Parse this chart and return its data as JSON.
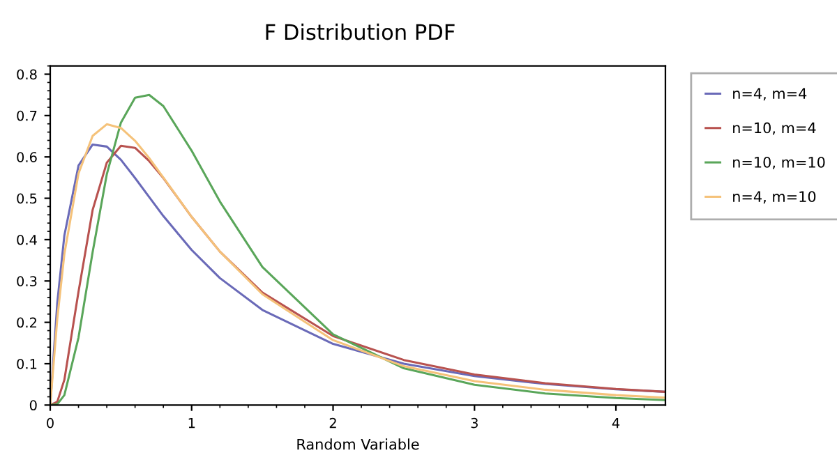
{
  "chart_data": {
    "type": "line",
    "title": "F Distribution PDF",
    "xlabel": "Random Variable",
    "x": [
      0,
      0.05,
      0.1,
      0.2,
      0.3,
      0.4,
      0.5,
      0.6,
      0.7,
      0.8,
      1.0,
      1.2,
      1.5,
      2,
      2.5,
      3,
      3.5,
      4,
      4.35
    ],
    "series": [
      {
        "name": "n=4, m=4",
        "color": "#6a6ab8",
        "values": [
          0,
          0.247,
          0.41,
          0.579,
          0.63,
          0.625,
          0.593,
          0.549,
          0.503,
          0.457,
          0.375,
          0.307,
          0.23,
          0.148,
          0.1,
          0.07,
          0.051,
          0.038,
          0.032
        ]
      },
      {
        "name": "n=10, m=4",
        "color": "#b8524f",
        "values": [
          0,
          0.008,
          0.061,
          0.274,
          0.472,
          0.586,
          0.627,
          0.622,
          0.59,
          0.549,
          0.455,
          0.371,
          0.272,
          0.167,
          0.109,
          0.074,
          0.053,
          0.039,
          0.032
        ]
      },
      {
        "name": "n=10, m=10",
        "color": "#5aa65a",
        "values": [
          0,
          0.002,
          0.024,
          0.163,
          0.37,
          0.558,
          0.683,
          0.743,
          0.75,
          0.723,
          0.615,
          0.492,
          0.334,
          0.171,
          0.089,
          0.049,
          0.028,
          0.017,
          0.012
        ]
      },
      {
        "name": "n=4, m=10",
        "color": "#f5c27a",
        "values": [
          0,
          0.209,
          0.365,
          0.56,
          0.651,
          0.679,
          0.67,
          0.639,
          0.597,
          0.55,
          0.455,
          0.371,
          0.268,
          0.157,
          0.094,
          0.058,
          0.037,
          0.024,
          0.018
        ]
      }
    ],
    "xlim": [
      0,
      4.35
    ],
    "xticks": [
      0,
      1,
      2,
      3,
      4
    ],
    "ylim": [
      0,
      0.82
    ],
    "yticks": [
      0,
      0.1,
      0.2,
      0.3,
      0.4,
      0.5,
      0.6,
      0.7,
      0.8
    ],
    "grid": false,
    "legend": "right",
    "marker": "none",
    "line_style": "solid"
  }
}
